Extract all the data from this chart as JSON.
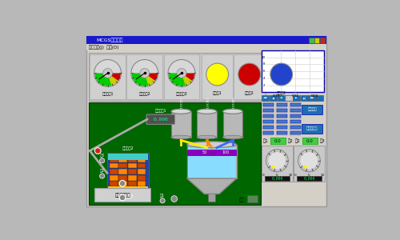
{
  "bg_outer": "#b8b8b8",
  "bg_window": "#d4d0c8",
  "titlebar_color": "#1a1acc",
  "titlebar_text": "MCGS群控工程",
  "menubar_text": "系统管理(J)  操作(O)",
  "main_bg": "#006600",
  "chart_bg": "#ffffff",
  "indicator_yellow": "#ffff00",
  "indicator_red": "#cc0000",
  "indicator_blue": "#2244cc",
  "gauge_green": "#00cc00",
  "btn_blue": "#1c6eb4",
  "btn_text1": "开期运行",
  "btn_text2": "紧料配运行",
  "gauge_labels": [
    "检测仪表1",
    "检测仪表2",
    "检测仪表3",
    "原料罐1",
    "原料罐2",
    "原料罐3"
  ],
  "time_labels": [
    "5/30",
    "5/31",
    "5/04"
  ],
  "green_val": "0.0",
  "display_val": "0.000",
  "bottom_text": "以时间比分割",
  "status_text": "就绪"
}
